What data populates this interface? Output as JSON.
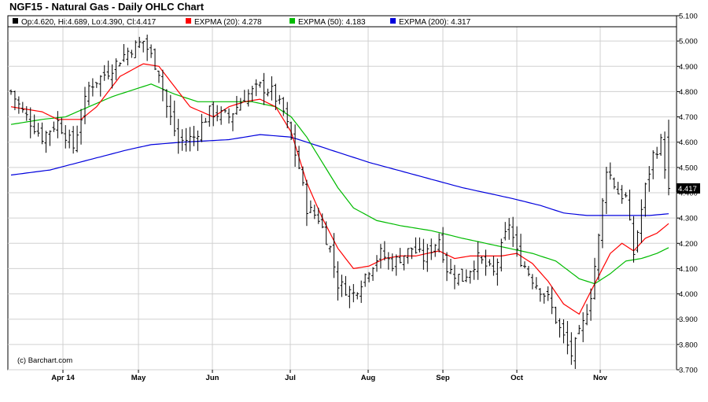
{
  "chart_data": {
    "type": "ohlc",
    "title": "NGF15 - Natural Gas - Daily OHLC Chart",
    "legend": [
      {
        "label": "Op:4.620, Hi:4.689, Lo:4.390, Cl:4.417",
        "color": "#000000",
        "key": "ohlc"
      },
      {
        "label": "EXPMA (20): 4.278",
        "color": "#ff0000",
        "key": "ema20"
      },
      {
        "label": "EXPMA (50): 4.183",
        "color": "#00bb00",
        "key": "ema50"
      },
      {
        "label": "EXPMA (200): 4.317",
        "color": "#0000dd",
        "key": "ema200"
      }
    ],
    "credit": "(c) Barchart.com",
    "last_price_label": "4.417",
    "last_price": 4.417,
    "ylim": [
      3.7,
      5.1
    ],
    "y_ticks": [
      "3.700",
      "3.800",
      "3.900",
      "4.000",
      "4.100",
      "4.200",
      "4.300",
      "4.400",
      "4.500",
      "4.600",
      "4.700",
      "4.800",
      "4.900",
      "5.000",
      "5.100"
    ],
    "x_ticks": [
      "Apr 14",
      "May",
      "Jun",
      "Jul",
      "Aug",
      "Sep",
      "Oct",
      "Nov"
    ],
    "grid": true,
    "y_axis_position": "right",
    "num_bars": 170,
    "bar_anchors": [
      [
        0,
        4.8
      ],
      [
        3,
        4.72
      ],
      [
        8,
        4.62
      ],
      [
        12,
        4.68
      ],
      [
        16,
        4.58
      ],
      [
        20,
        4.82
      ],
      [
        25,
        4.88
      ],
      [
        30,
        4.96
      ],
      [
        34,
        5.0
      ],
      [
        38,
        4.88
      ],
      [
        40,
        4.74
      ],
      [
        43,
        4.6
      ],
      [
        47,
        4.62
      ],
      [
        51,
        4.72
      ],
      [
        56,
        4.7
      ],
      [
        60,
        4.78
      ],
      [
        64,
        4.82
      ],
      [
        67,
        4.8
      ],
      [
        70,
        4.72
      ],
      [
        74,
        4.5
      ],
      [
        76,
        4.34
      ],
      [
        79,
        4.3
      ],
      [
        82,
        4.18
      ],
      [
        84,
        4.04
      ],
      [
        88,
        4.0
      ],
      [
        92,
        4.1
      ],
      [
        95,
        4.16
      ],
      [
        98,
        4.12
      ],
      [
        103,
        4.18
      ],
      [
        106,
        4.14
      ],
      [
        110,
        4.22
      ],
      [
        112,
        4.1
      ],
      [
        116,
        4.06
      ],
      [
        120,
        4.14
      ],
      [
        124,
        4.08
      ],
      [
        128,
        4.28
      ],
      [
        130,
        4.16
      ],
      [
        134,
        4.06
      ],
      [
        138,
        3.98
      ],
      [
        141,
        3.86
      ],
      [
        144,
        3.76
      ],
      [
        147,
        3.88
      ],
      [
        149,
        4.0
      ],
      [
        151,
        4.22
      ],
      [
        153,
        4.5
      ],
      [
        156,
        4.4
      ],
      [
        158,
        4.38
      ],
      [
        160,
        4.16
      ],
      [
        163,
        4.42
      ],
      [
        165,
        4.55
      ],
      [
        167,
        4.6
      ],
      [
        169,
        4.417
      ]
    ],
    "ema20": [
      [
        0,
        4.74
      ],
      [
        8,
        4.72
      ],
      [
        12,
        4.69
      ],
      [
        18,
        4.69
      ],
      [
        22,
        4.74
      ],
      [
        28,
        4.86
      ],
      [
        34,
        4.91
      ],
      [
        38,
        4.9
      ],
      [
        42,
        4.82
      ],
      [
        46,
        4.74
      ],
      [
        52,
        4.7
      ],
      [
        56,
        4.74
      ],
      [
        60,
        4.76
      ],
      [
        64,
        4.77
      ],
      [
        68,
        4.74
      ],
      [
        72,
        4.64
      ],
      [
        76,
        4.44
      ],
      [
        80,
        4.3
      ],
      [
        84,
        4.18
      ],
      [
        88,
        4.1
      ],
      [
        92,
        4.11
      ],
      [
        96,
        4.14
      ],
      [
        100,
        4.15
      ],
      [
        104,
        4.15
      ],
      [
        110,
        4.17
      ],
      [
        114,
        4.14
      ],
      [
        118,
        4.15
      ],
      [
        122,
        4.15
      ],
      [
        126,
        4.15
      ],
      [
        130,
        4.16
      ],
      [
        134,
        4.12
      ],
      [
        138,
        4.05
      ],
      [
        142,
        3.96
      ],
      [
        146,
        3.92
      ],
      [
        150,
        4.04
      ],
      [
        154,
        4.16
      ],
      [
        157,
        4.2
      ],
      [
        160,
        4.17
      ],
      [
        163,
        4.22
      ],
      [
        166,
        4.24
      ],
      [
        169,
        4.278
      ]
    ],
    "ema50": [
      [
        0,
        4.67
      ],
      [
        8,
        4.69
      ],
      [
        14,
        4.7
      ],
      [
        20,
        4.74
      ],
      [
        26,
        4.78
      ],
      [
        32,
        4.81
      ],
      [
        36,
        4.83
      ],
      [
        42,
        4.79
      ],
      [
        48,
        4.76
      ],
      [
        56,
        4.76
      ],
      [
        62,
        4.76
      ],
      [
        68,
        4.74
      ],
      [
        72,
        4.7
      ],
      [
        76,
        4.62
      ],
      [
        80,
        4.52
      ],
      [
        84,
        4.42
      ],
      [
        88,
        4.34
      ],
      [
        94,
        4.29
      ],
      [
        100,
        4.27
      ],
      [
        108,
        4.25
      ],
      [
        116,
        4.22
      ],
      [
        122,
        4.2
      ],
      [
        128,
        4.18
      ],
      [
        134,
        4.16
      ],
      [
        140,
        4.13
      ],
      [
        146,
        4.06
      ],
      [
        150,
        4.04
      ],
      [
        154,
        4.08
      ],
      [
        158,
        4.13
      ],
      [
        162,
        4.14
      ],
      [
        166,
        4.16
      ],
      [
        169,
        4.183
      ]
    ],
    "ema200": [
      [
        0,
        4.47
      ],
      [
        10,
        4.49
      ],
      [
        20,
        4.53
      ],
      [
        30,
        4.57
      ],
      [
        36,
        4.59
      ],
      [
        44,
        4.6
      ],
      [
        56,
        4.61
      ],
      [
        64,
        4.63
      ],
      [
        72,
        4.62
      ],
      [
        80,
        4.58
      ],
      [
        92,
        4.52
      ],
      [
        104,
        4.47
      ],
      [
        116,
        4.42
      ],
      [
        128,
        4.38
      ],
      [
        136,
        4.35
      ],
      [
        142,
        4.32
      ],
      [
        148,
        4.31
      ],
      [
        156,
        4.31
      ],
      [
        164,
        4.31
      ],
      [
        169,
        4.317
      ]
    ]
  }
}
